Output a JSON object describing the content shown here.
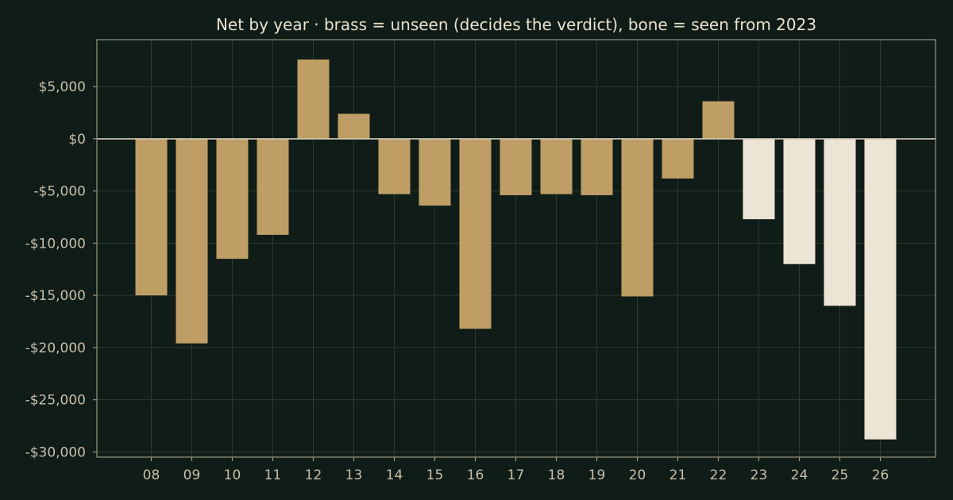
{
  "chart_data": {
    "type": "bar",
    "title": "Net by year  ·  brass = unseen (decides the verdict), bone = seen from 2023",
    "xlabel": "",
    "ylabel": "",
    "categories": [
      "08",
      "09",
      "10",
      "11",
      "12",
      "13",
      "14",
      "15",
      "16",
      "17",
      "18",
      "19",
      "20",
      "21",
      "22",
      "23",
      "24",
      "25",
      "26"
    ],
    "values": [
      -15000,
      -19600,
      -11500,
      -9200,
      7600,
      2400,
      -5300,
      -6400,
      -18200,
      -5400,
      -5300,
      -5400,
      -15100,
      -3800,
      3600,
      -7700,
      -12000,
      -16000,
      -28800
    ],
    "group": [
      "unseen",
      "unseen",
      "unseen",
      "unseen",
      "unseen",
      "unseen",
      "unseen",
      "unseen",
      "unseen",
      "unseen",
      "unseen",
      "unseen",
      "unseen",
      "unseen",
      "unseen",
      "seen",
      "seen",
      "seen",
      "seen"
    ],
    "colors": {
      "unseen": "#bf9e66",
      "seen": "#ece5d5"
    },
    "ylim": [
      -30500,
      9500
    ],
    "yticks": [
      5000,
      0,
      -5000,
      -10000,
      -15000,
      -20000,
      -25000,
      -30000
    ],
    "ytick_labels": [
      "$5,000",
      "$0",
      "-$5,000",
      "-$10,000",
      "-$15,000",
      "-$20,000",
      "-$25,000",
      "-$30,000"
    ],
    "grid": true,
    "legend": "none"
  }
}
